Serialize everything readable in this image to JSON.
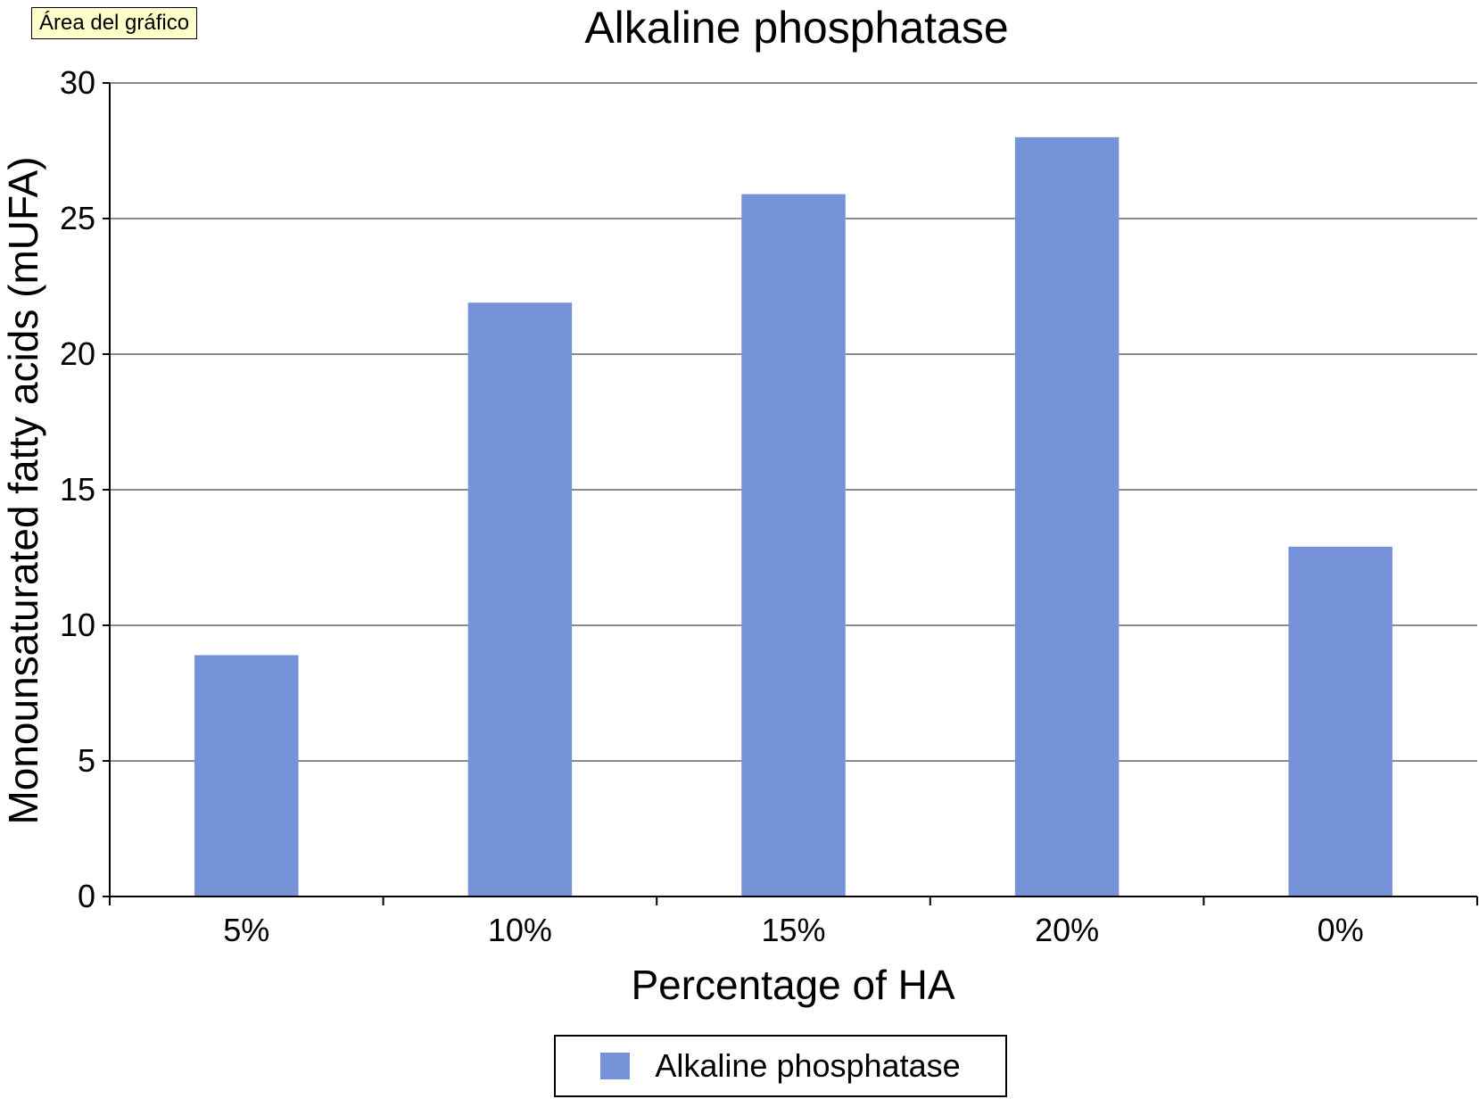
{
  "chart_area_label": "Área del gráfico",
  "chart_data": {
    "type": "bar",
    "title": "Alkaline phosphatase",
    "xlabel": "Percentage of HA",
    "ylabel": "Monounsaturated fatty acids (mUFA)",
    "categories": [
      "5%",
      "10%",
      "15%",
      "20%",
      "0%"
    ],
    "series": [
      {
        "name": "Alkaline phosphatase",
        "values": [
          8.9,
          21.9,
          25.9,
          28.0,
          12.9
        ],
        "color": "#7693d9"
      }
    ],
    "ylim": [
      0,
      30
    ],
    "yticks": [
      0,
      5,
      10,
      15,
      20,
      25,
      30
    ],
    "grid": true,
    "legend_position": "bottom"
  }
}
